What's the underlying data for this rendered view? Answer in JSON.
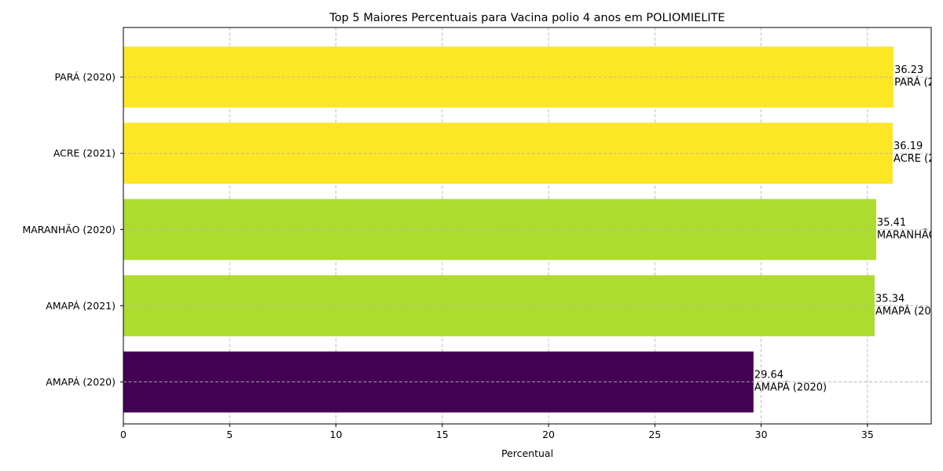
{
  "chart_data": {
    "type": "bar",
    "orientation": "horizontal",
    "title": "Top 5 Maiores Percentuais para Vacina polio 4 anos em POLIOMIELITE",
    "xlabel": "Percentual",
    "ylabel": "",
    "xlim": [
      0,
      38
    ],
    "xticks": [
      0,
      5,
      10,
      15,
      20,
      25,
      30,
      35
    ],
    "grid": true,
    "categories": [
      "PARÁ (2020)",
      "ACRE (2021)",
      "MARANHÃO (2020)",
      "AMAPÁ (2021)",
      "AMAPÁ (2020)"
    ],
    "values": [
      36.23,
      36.19,
      35.41,
      35.34,
      29.64
    ],
    "value_labels": [
      "36.23",
      "36.19",
      "35.41",
      "35.34",
      "29.64"
    ],
    "bar_labels": [
      "PARÁ (2020)",
      "ACRE (2021)",
      "MARANHÃO (2020)",
      "AMAPÁ (2021)",
      "AMAPÁ (2020)"
    ],
    "colors": [
      "#fde725",
      "#fde725",
      "#addc30",
      "#addc30",
      "#440154"
    ]
  }
}
